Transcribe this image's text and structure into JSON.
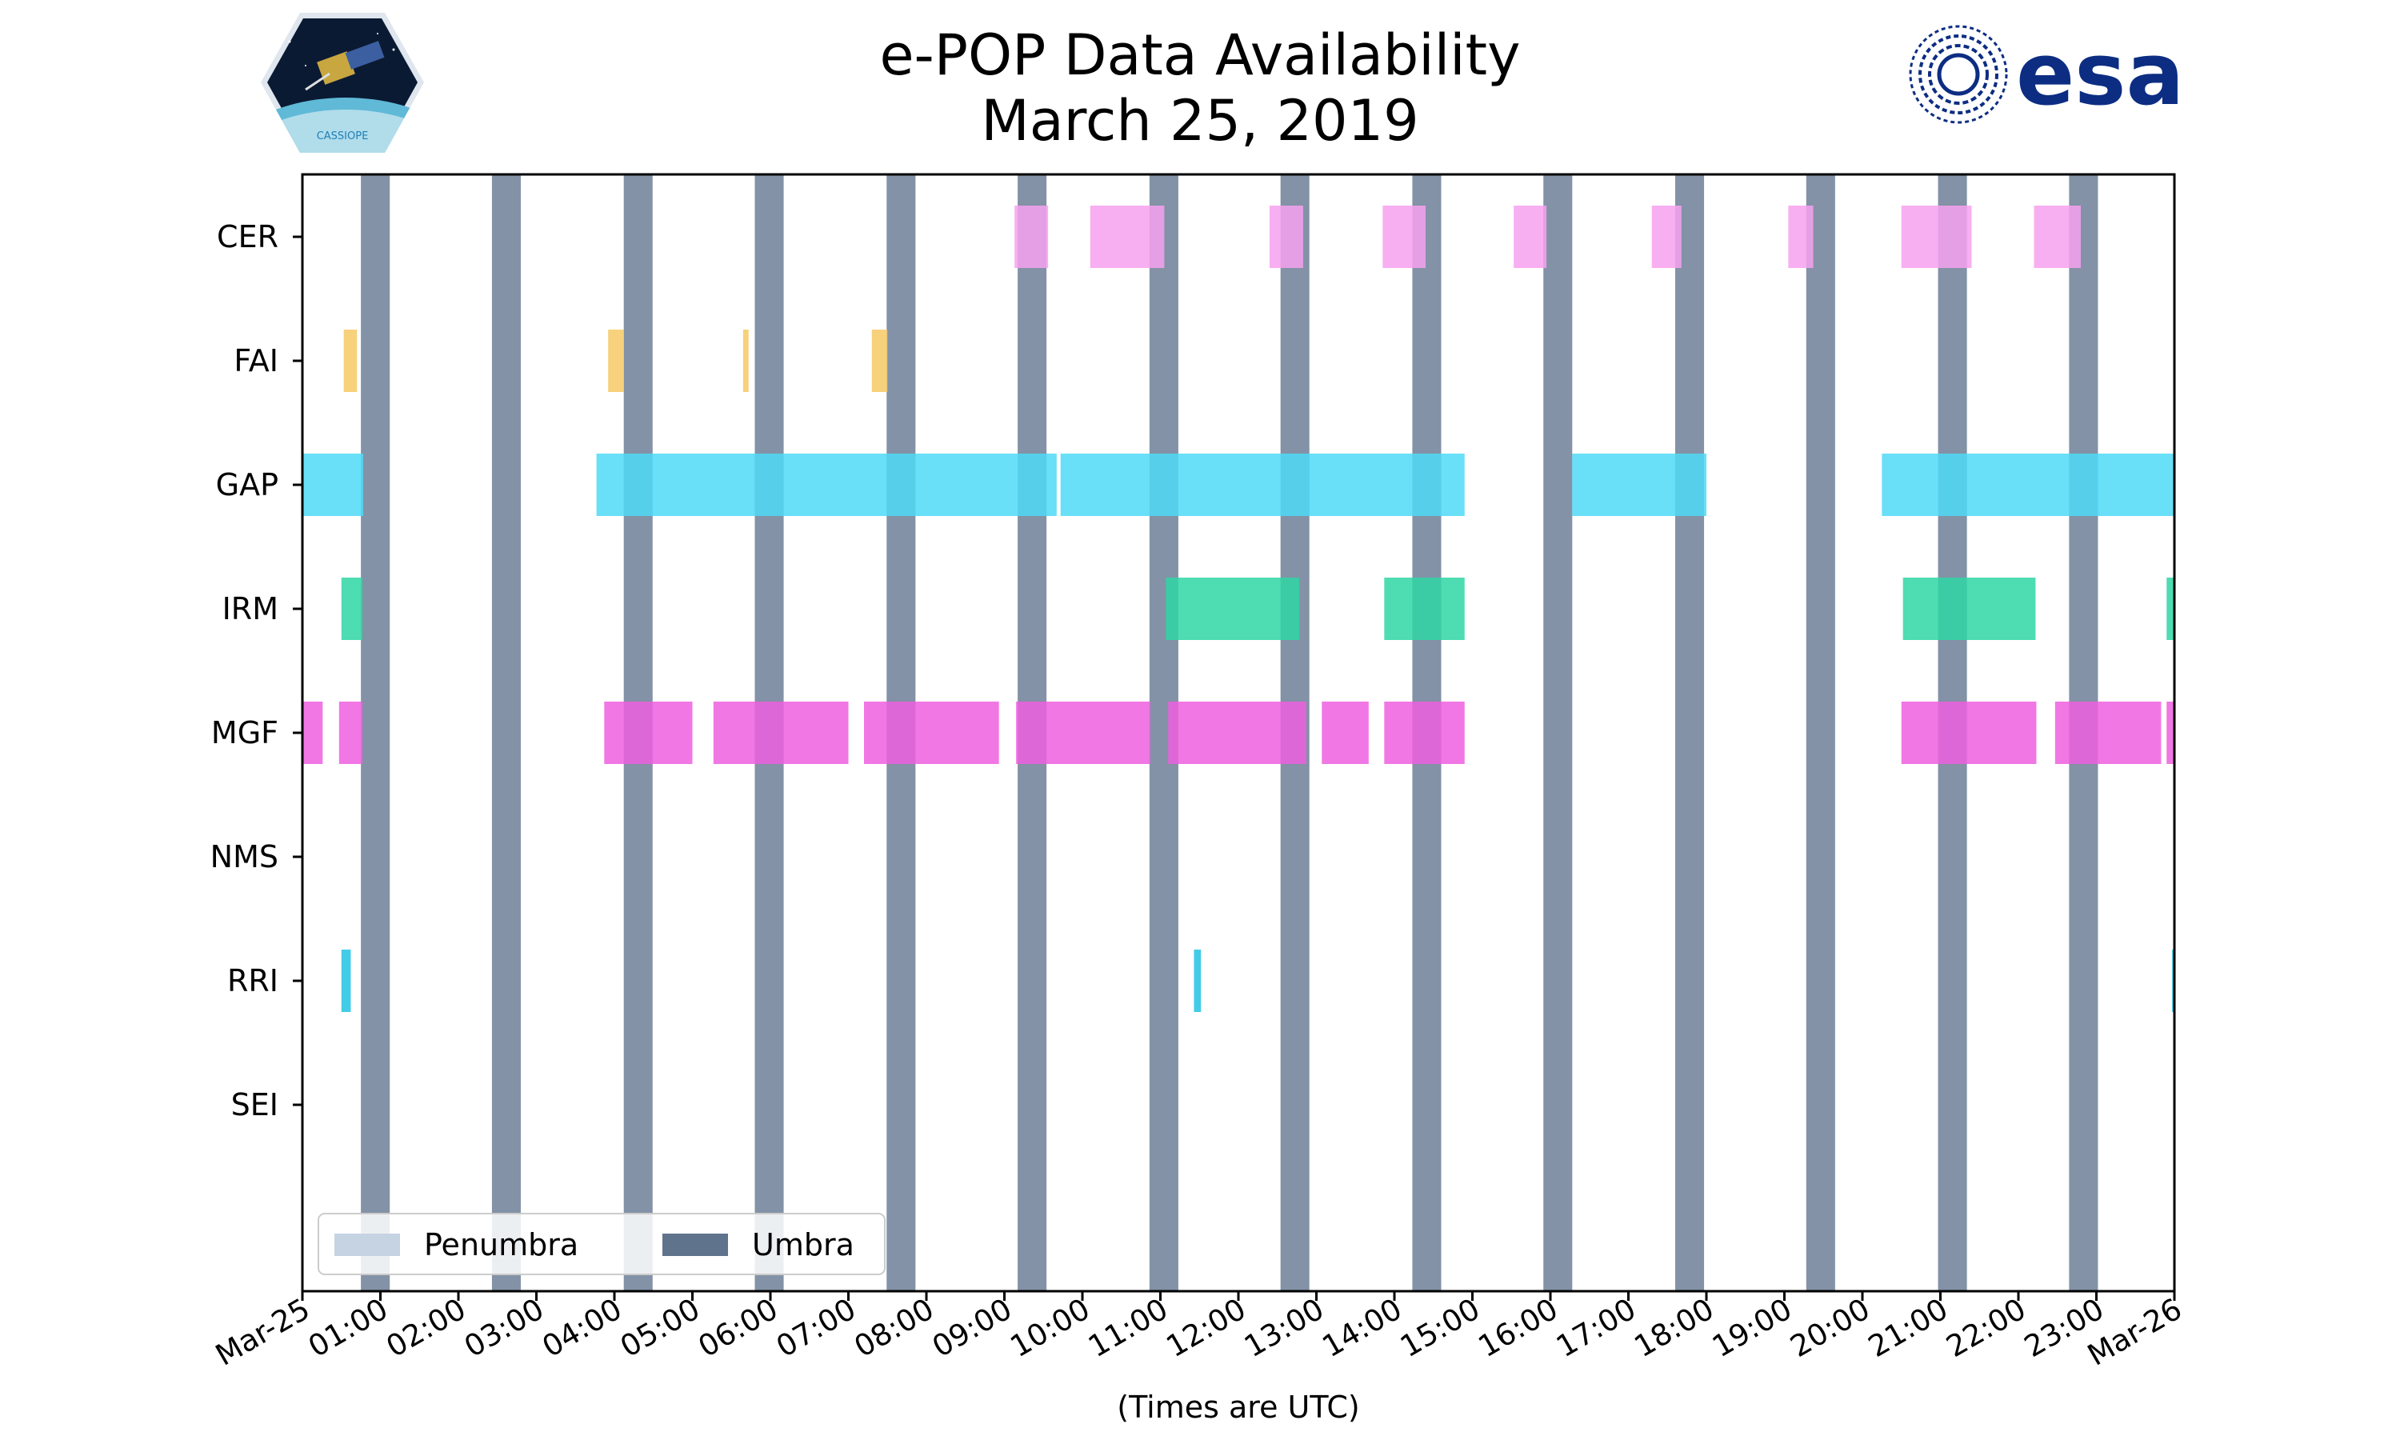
{
  "chart_data": {
    "type": "timeline",
    "title": "e-POP Data Availability",
    "subtitle": "March 25, 2019",
    "xlabel": "(Times are UTC)",
    "xlim_hours": [
      0,
      24
    ],
    "x_tick_labels": [
      "Mar-25",
      "01:00",
      "02:00",
      "03:00",
      "04:00",
      "05:00",
      "06:00",
      "07:00",
      "08:00",
      "09:00",
      "10:00",
      "11:00",
      "12:00",
      "13:00",
      "14:00",
      "15:00",
      "16:00",
      "17:00",
      "18:00",
      "19:00",
      "20:00",
      "21:00",
      "22:00",
      "23:00",
      "Mar-26"
    ],
    "instruments": [
      "CER",
      "FAI",
      "GAP",
      "IRM",
      "MGF",
      "NMS",
      "RRI",
      "SEI"
    ],
    "colors": {
      "CER": "#f7a1ef",
      "FAI": "#f6c964",
      "GAP": "#4fd9f7",
      "IRM": "#2fd6a5",
      "MGF": "#ee5fdf",
      "RRI": "#22c3e3",
      "umbra": "#60738d",
      "penumbra": "#c6d3e3",
      "legend_edge": "#cccccc",
      "axis": "#000000"
    },
    "umbra_hours": [
      [
        0.75,
        1.12
      ],
      [
        2.43,
        2.8
      ],
      [
        4.12,
        4.49
      ],
      [
        5.8,
        6.17
      ],
      [
        7.49,
        7.86
      ],
      [
        9.17,
        9.54
      ],
      [
        10.86,
        11.23
      ],
      [
        12.54,
        12.91
      ],
      [
        14.23,
        14.6
      ],
      [
        15.91,
        16.28
      ],
      [
        17.6,
        17.97
      ],
      [
        19.28,
        19.65
      ],
      [
        20.97,
        21.34
      ],
      [
        22.65,
        23.02
      ]
    ],
    "segments": {
      "CER": [
        [
          9.13,
          9.56
        ],
        [
          10.1,
          11.05
        ],
        [
          12.4,
          12.83
        ],
        [
          13.85,
          14.4
        ],
        [
          15.53,
          15.95
        ],
        [
          17.3,
          17.68
        ],
        [
          19.05,
          19.37
        ],
        [
          20.5,
          21.4
        ],
        [
          22.2,
          22.8
        ]
      ],
      "FAI": [
        [
          0.53,
          0.7
        ],
        [
          3.92,
          4.12
        ],
        [
          5.65,
          5.72
        ],
        [
          7.3,
          7.5
        ]
      ],
      "GAP": [
        [
          0.0,
          0.78
        ],
        [
          3.77,
          9.67
        ],
        [
          9.72,
          14.9
        ],
        [
          16.28,
          18.0
        ],
        [
          20.25,
          24.0
        ]
      ],
      "IRM": [
        [
          0.5,
          0.77
        ],
        [
          11.07,
          12.78
        ],
        [
          13.87,
          14.9
        ],
        [
          20.52,
          22.22
        ],
        [
          23.9,
          24.0
        ]
      ],
      "MGF": [
        [
          0.0,
          0.26
        ],
        [
          0.47,
          0.77
        ],
        [
          3.87,
          5.0
        ],
        [
          5.27,
          7.0
        ],
        [
          7.2,
          8.93
        ],
        [
          9.15,
          10.87
        ],
        [
          11.1,
          12.87
        ],
        [
          13.07,
          13.67
        ],
        [
          13.87,
          14.9
        ],
        [
          20.5,
          22.23
        ],
        [
          22.47,
          23.83
        ],
        [
          23.9,
          24.0
        ]
      ],
      "NMS": [],
      "RRI": [
        [
          0.5,
          0.62
        ],
        [
          11.43,
          11.52
        ],
        [
          23.97,
          24.0
        ]
      ],
      "SEI": []
    },
    "legend": {
      "position": "lower-left",
      "entries": [
        {
          "label": "Penumbra",
          "color_key": "penumbra"
        },
        {
          "label": "Umbra",
          "color_key": "umbra"
        }
      ]
    }
  },
  "logos": {
    "mission": {
      "text": "CASSIOPE"
    },
    "agency": {
      "text": "esa",
      "color": "#0c2d82"
    }
  }
}
